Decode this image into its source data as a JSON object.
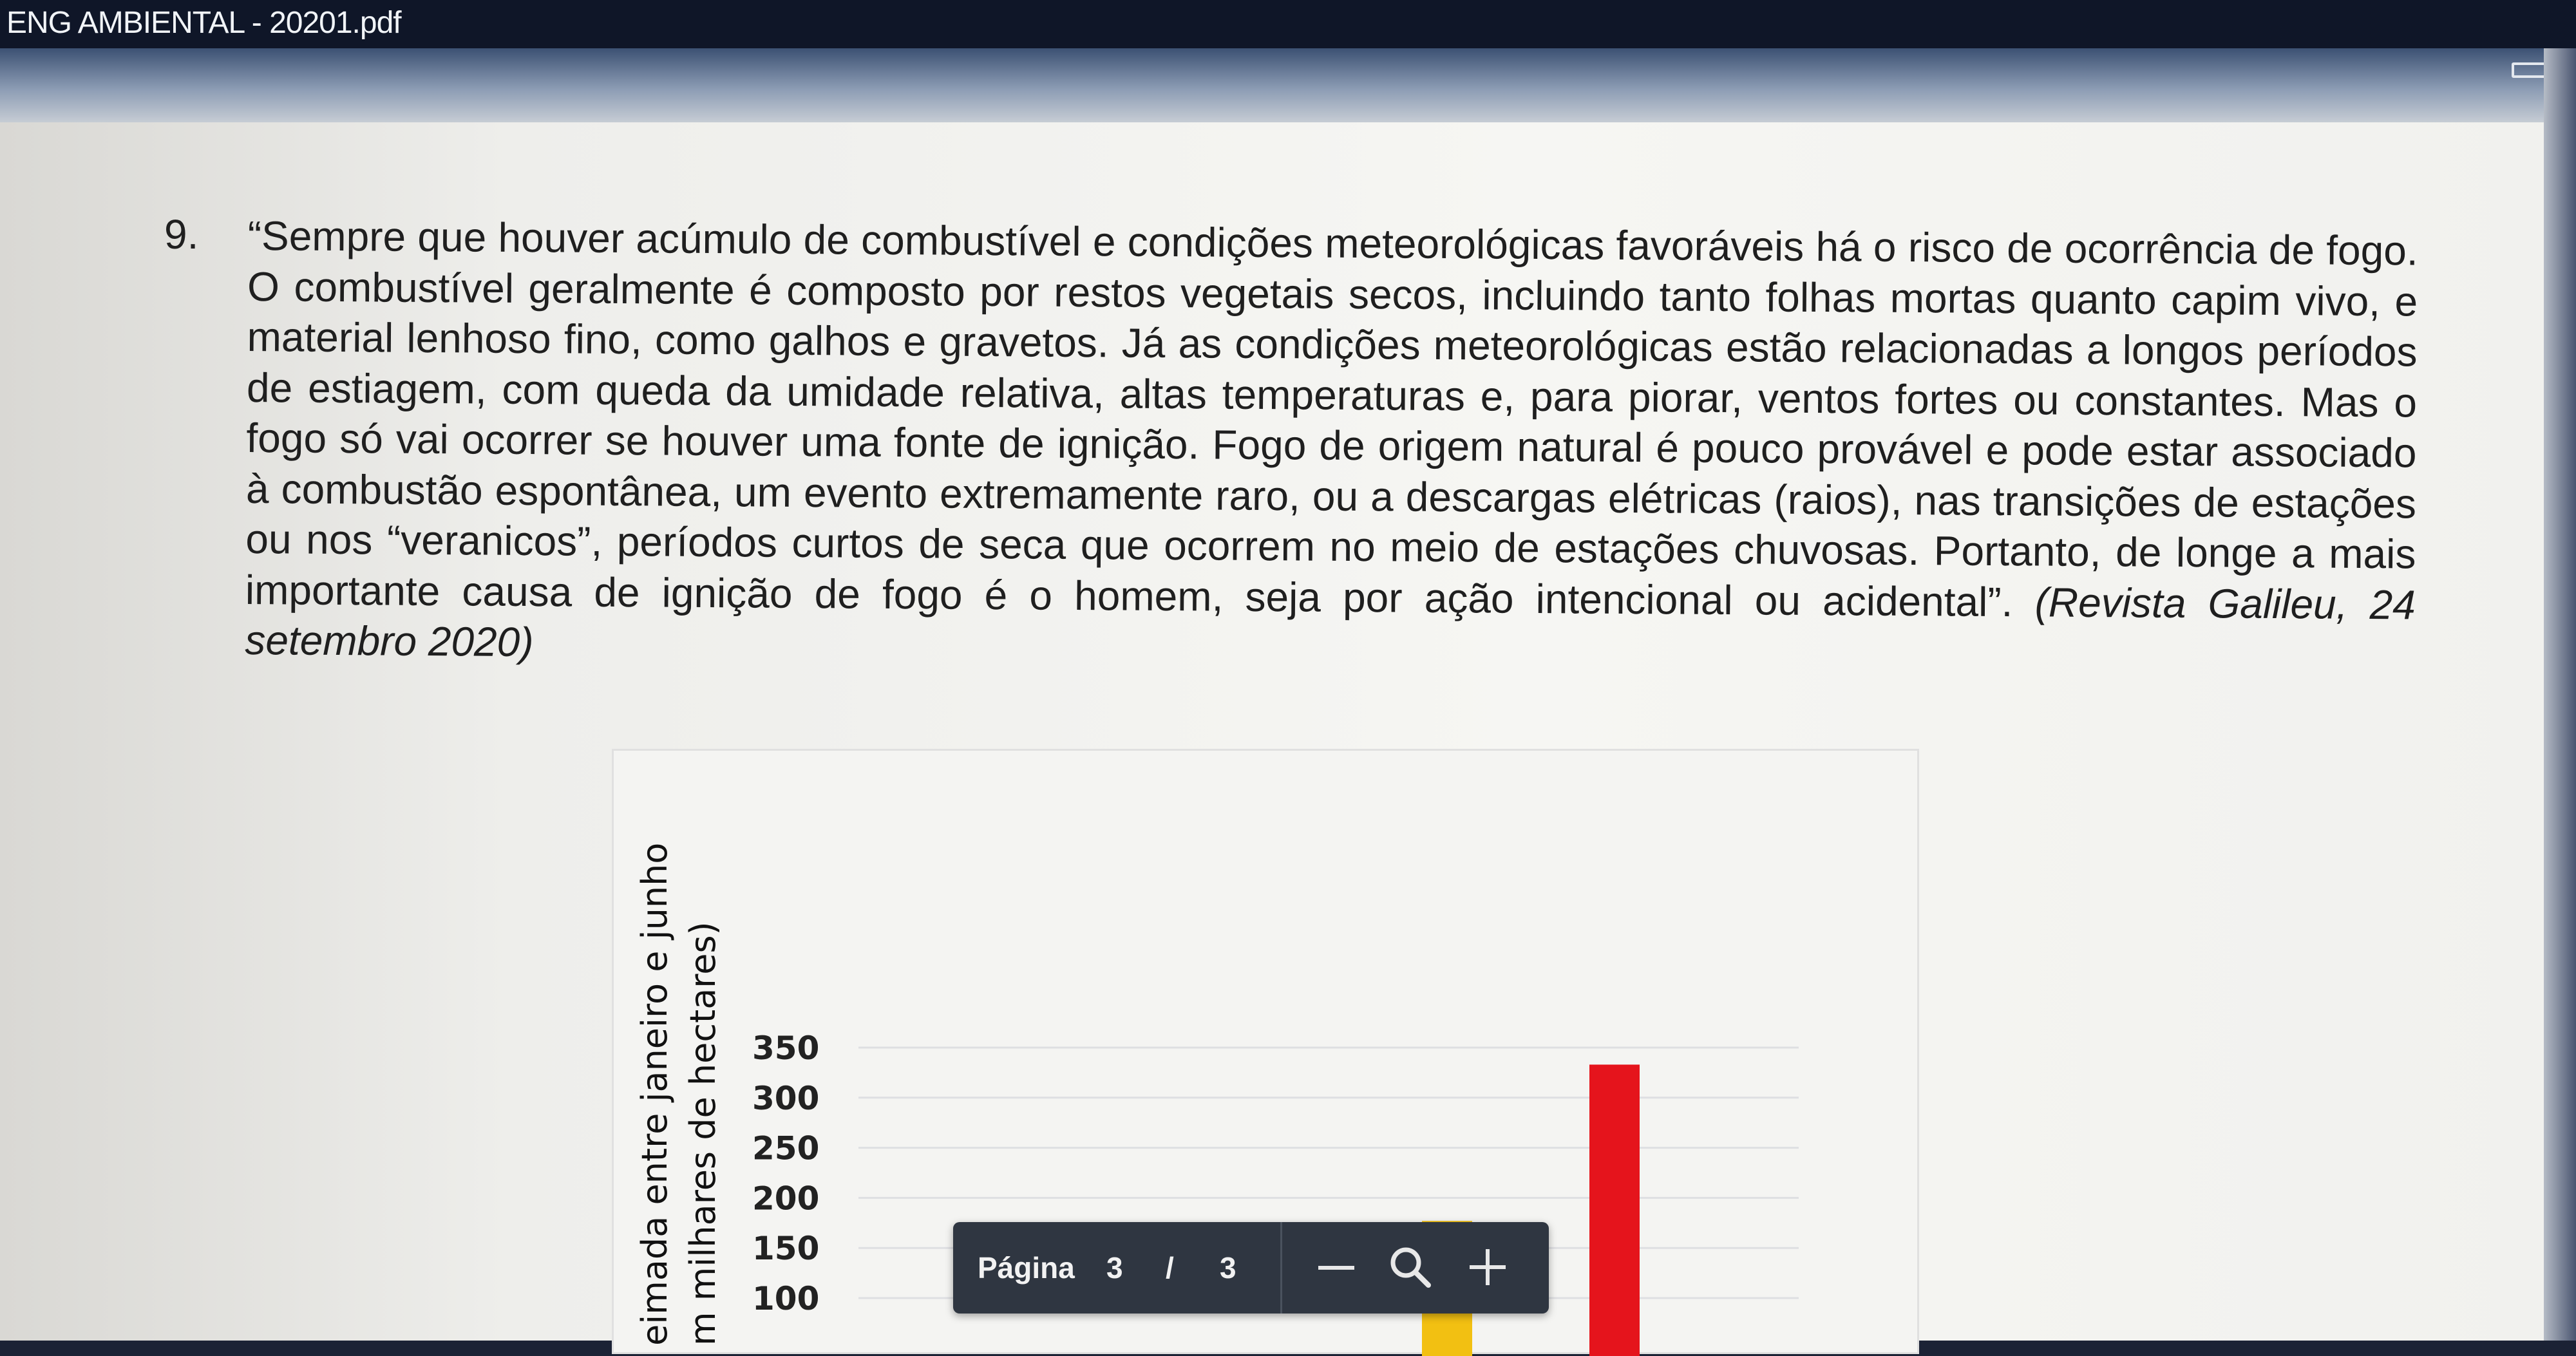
{
  "window": {
    "title": "ENG AMBIENTAL - 20201.pdf"
  },
  "question": {
    "number": "9.",
    "text": "“Sempre que houver acúmulo de combustível e condições meteorológicas favoráveis há o risco de ocorrência de fogo. O combustível geralmente é composto por restos vegetais secos, incluindo tanto folhas mortas quanto capim vivo, e material lenhoso fino, como galhos e gravetos. Já as condições meteorológicas estão relacionadas a longos períodos de estiagem, com queda da umidade relativa, altas temperaturas e, para piorar, ventos fortes ou constantes. Mas o fogo só vai ocorrer se houver uma fonte de ignição. Fogo de origem natural é pouco provável e pode estar associado à combustão espontânea, um evento extremamente raro, ou a descargas elétricas (raios), nas transições de estações ou nos “veranicos”, períodos curtos de seca que ocorrem no meio de estações chuvosas. Portanto, de longe a mais importante causa de ignição de fogo é o homem, seja por ação intencional ou acidental”. ",
    "citation": "(Revista Galileu, 24 setembro 2020)"
  },
  "chart_data": {
    "type": "bar",
    "ylabel": "eimada entre janeiro e junho",
    "ylabel_line2": "m milhares de hectares)",
    "yticks": [
      "350",
      "300",
      "250",
      "200",
      "150",
      "100"
    ],
    "ytick_values": [
      350,
      300,
      250,
      200,
      150,
      100
    ],
    "ylim": [
      100,
      350
    ],
    "grid": true,
    "bars": [
      {
        "value": 177,
        "color": "#f2c012"
      },
      {
        "value": 333,
        "color": "#e5141c"
      }
    ]
  },
  "toolbar": {
    "page_label": "Página",
    "current_page": "3",
    "separator": "/",
    "total_pages": "3"
  },
  "icons": {
    "zoom": "magnifier-icon",
    "zoom_out": "minus-icon",
    "zoom_in": "plus-icon",
    "window": "restore-window-icon"
  }
}
